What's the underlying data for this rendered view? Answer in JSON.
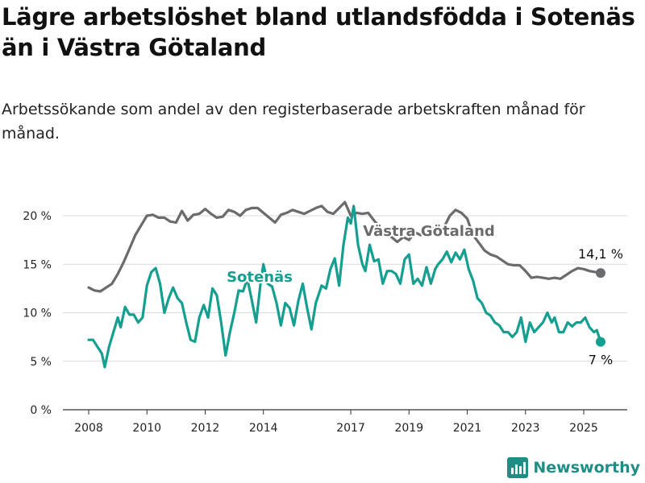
{
  "title": "Lägre arbetslöshet bland utlandsfödda i Sotenäs än i Västra Götaland",
  "subtitle": "Arbetssökande som andel av den registerbaserade arbetskraften månad för månad.",
  "brand": {
    "name": "Newsworthy",
    "icon": "bar-chart-logo-icon",
    "color": "#1f8f86"
  },
  "chart_data": {
    "type": "line",
    "title": "Lägre arbetslöshet bland utlandsfödda i Sotenäs än i Västra Götaland",
    "xlabel": "",
    "ylabel": "",
    "xlim": [
      2007.9,
      2025.95
    ],
    "ylim": [
      0,
      22
    ],
    "x_ticks": [
      {
        "value": 2008,
        "label": "2008"
      },
      {
        "value": 2010,
        "label": "2010"
      },
      {
        "value": 2012,
        "label": "2012"
      },
      {
        "value": 2014,
        "label": "2014"
      },
      {
        "value": 2017,
        "label": "2017"
      },
      {
        "value": 2019,
        "label": "2019"
      },
      {
        "value": 2021,
        "label": "2021"
      },
      {
        "value": 2023,
        "label": "2023"
      },
      {
        "value": 2025,
        "label": "2025"
      }
    ],
    "y_ticks": [
      {
        "value": 0,
        "label": "0 %"
      },
      {
        "value": 5,
        "label": "5 %"
      },
      {
        "value": 10,
        "label": "10 %"
      },
      {
        "value": 15,
        "label": "15 %"
      },
      {
        "value": 20,
        "label": "20 %"
      }
    ],
    "grid": true,
    "series": [
      {
        "name": "Västra Götaland",
        "color": "#6b6b6d",
        "end_label": "14,1 %",
        "points": [
          [
            2008.0,
            12.6
          ],
          [
            2008.2,
            12.3
          ],
          [
            2008.4,
            12.2
          ],
          [
            2008.6,
            12.6
          ],
          [
            2008.8,
            13.0
          ],
          [
            2009.0,
            14.0
          ],
          [
            2009.2,
            15.2
          ],
          [
            2009.4,
            16.6
          ],
          [
            2009.6,
            18.0
          ],
          [
            2009.8,
            19.0
          ],
          [
            2010.0,
            20.0
          ],
          [
            2010.2,
            20.1
          ],
          [
            2010.4,
            19.8
          ],
          [
            2010.6,
            19.8
          ],
          [
            2010.8,
            19.4
          ],
          [
            2011.0,
            19.3
          ],
          [
            2011.2,
            20.5
          ],
          [
            2011.4,
            19.5
          ],
          [
            2011.6,
            20.1
          ],
          [
            2011.8,
            20.2
          ],
          [
            2012.0,
            20.7
          ],
          [
            2012.2,
            20.2
          ],
          [
            2012.4,
            19.8
          ],
          [
            2012.6,
            19.9
          ],
          [
            2012.8,
            20.6
          ],
          [
            2013.0,
            20.4
          ],
          [
            2013.2,
            20.0
          ],
          [
            2013.4,
            20.6
          ],
          [
            2013.6,
            20.8
          ],
          [
            2013.8,
            20.8
          ],
          [
            2014.0,
            20.3
          ],
          [
            2014.2,
            19.8
          ],
          [
            2014.4,
            19.3
          ],
          [
            2014.6,
            20.1
          ],
          [
            2014.8,
            20.3
          ],
          [
            2015.0,
            20.6
          ],
          [
            2015.2,
            20.4
          ],
          [
            2015.4,
            20.2
          ],
          [
            2015.6,
            20.5
          ],
          [
            2015.8,
            20.8
          ],
          [
            2016.0,
            21.0
          ],
          [
            2016.2,
            20.4
          ],
          [
            2016.4,
            20.2
          ],
          [
            2016.6,
            20.8
          ],
          [
            2016.8,
            21.4
          ],
          [
            2017.0,
            20.0
          ],
          [
            2017.2,
            20.3
          ],
          [
            2017.4,
            20.2
          ],
          [
            2017.6,
            20.3
          ],
          [
            2017.8,
            19.5
          ],
          [
            2018.0,
            18.8
          ],
          [
            2018.2,
            18.2
          ],
          [
            2018.4,
            17.8
          ],
          [
            2018.6,
            17.3
          ],
          [
            2018.8,
            17.8
          ],
          [
            2019.0,
            17.5
          ],
          [
            2019.2,
            18.3
          ],
          [
            2019.4,
            18.0
          ],
          [
            2019.6,
            18.4
          ],
          [
            2019.8,
            18.7
          ],
          [
            2020.0,
            18.4
          ],
          [
            2020.2,
            18.8
          ],
          [
            2020.4,
            20.0
          ],
          [
            2020.6,
            20.6
          ],
          [
            2020.8,
            20.3
          ],
          [
            2021.0,
            19.7
          ],
          [
            2021.2,
            18.0
          ],
          [
            2021.4,
            17.2
          ],
          [
            2021.6,
            16.4
          ],
          [
            2021.8,
            16.0
          ],
          [
            2022.0,
            15.8
          ],
          [
            2022.2,
            15.4
          ],
          [
            2022.4,
            15.0
          ],
          [
            2022.6,
            14.9
          ],
          [
            2022.8,
            14.9
          ],
          [
            2023.0,
            14.3
          ],
          [
            2023.2,
            13.6
          ],
          [
            2023.4,
            13.7
          ],
          [
            2023.6,
            13.6
          ],
          [
            2023.8,
            13.5
          ],
          [
            2024.0,
            13.6
          ],
          [
            2024.2,
            13.5
          ],
          [
            2024.4,
            13.9
          ],
          [
            2024.6,
            14.3
          ],
          [
            2024.8,
            14.6
          ],
          [
            2025.0,
            14.5
          ],
          [
            2025.2,
            14.3
          ],
          [
            2025.4,
            14.2
          ],
          [
            2025.58,
            14.1
          ]
        ]
      },
      {
        "name": "Sotenäs",
        "color": "#159f91",
        "end_label": "7 %",
        "points": [
          [
            2008.0,
            7.2
          ],
          [
            2008.15,
            7.2
          ],
          [
            2008.3,
            6.5
          ],
          [
            2008.45,
            5.8
          ],
          [
            2008.55,
            4.4
          ],
          [
            2008.7,
            6.5
          ],
          [
            2008.85,
            8.0
          ],
          [
            2009.0,
            9.5
          ],
          [
            2009.1,
            8.5
          ],
          [
            2009.25,
            10.6
          ],
          [
            2009.4,
            9.8
          ],
          [
            2009.55,
            9.8
          ],
          [
            2009.7,
            9.0
          ],
          [
            2009.85,
            9.5
          ],
          [
            2010.0,
            12.8
          ],
          [
            2010.15,
            14.2
          ],
          [
            2010.3,
            14.6
          ],
          [
            2010.45,
            13.0
          ],
          [
            2010.6,
            10.0
          ],
          [
            2010.75,
            11.5
          ],
          [
            2010.9,
            12.6
          ],
          [
            2011.05,
            11.5
          ],
          [
            2011.2,
            11.0
          ],
          [
            2011.35,
            9.0
          ],
          [
            2011.5,
            7.2
          ],
          [
            2011.65,
            7.0
          ],
          [
            2011.8,
            9.5
          ],
          [
            2011.95,
            10.8
          ],
          [
            2012.1,
            9.5
          ],
          [
            2012.25,
            12.5
          ],
          [
            2012.4,
            11.8
          ],
          [
            2012.55,
            9.0
          ],
          [
            2012.7,
            5.6
          ],
          [
            2012.85,
            8.0
          ],
          [
            2013.0,
            10.0
          ],
          [
            2013.15,
            12.3
          ],
          [
            2013.3,
            12.2
          ],
          [
            2013.45,
            13.5
          ],
          [
            2013.6,
            11.3
          ],
          [
            2013.75,
            9.0
          ],
          [
            2013.9,
            13.0
          ],
          [
            2014.0,
            15.0
          ],
          [
            2014.15,
            13.0
          ],
          [
            2014.3,
            12.7
          ],
          [
            2014.45,
            11.0
          ],
          [
            2014.6,
            8.7
          ],
          [
            2014.75,
            11.0
          ],
          [
            2014.9,
            10.5
          ],
          [
            2015.05,
            8.7
          ],
          [
            2015.2,
            11.2
          ],
          [
            2015.35,
            13.0
          ],
          [
            2015.5,
            10.5
          ],
          [
            2015.65,
            8.3
          ],
          [
            2015.8,
            11.0
          ],
          [
            2016.0,
            12.8
          ],
          [
            2016.15,
            12.5
          ],
          [
            2016.3,
            14.5
          ],
          [
            2016.45,
            15.6
          ],
          [
            2016.6,
            12.8
          ],
          [
            2016.75,
            17.0
          ],
          [
            2016.9,
            19.8
          ],
          [
            2017.0,
            19.2
          ],
          [
            2017.1,
            21.0
          ],
          [
            2017.25,
            17.0
          ],
          [
            2017.4,
            15.0
          ],
          [
            2017.5,
            14.3
          ],
          [
            2017.65,
            17.0
          ],
          [
            2017.8,
            15.3
          ],
          [
            2017.95,
            15.5
          ],
          [
            2018.1,
            13.0
          ],
          [
            2018.25,
            14.3
          ],
          [
            2018.4,
            14.3
          ],
          [
            2018.55,
            14.0
          ],
          [
            2018.7,
            13.0
          ],
          [
            2018.85,
            15.5
          ],
          [
            2019.0,
            16.0
          ],
          [
            2019.15,
            13.0
          ],
          [
            2019.3,
            13.5
          ],
          [
            2019.45,
            12.8
          ],
          [
            2019.6,
            14.7
          ],
          [
            2019.75,
            13.0
          ],
          [
            2019.9,
            14.5
          ],
          [
            2020.0,
            15.0
          ],
          [
            2020.15,
            15.5
          ],
          [
            2020.3,
            16.3
          ],
          [
            2020.45,
            15.2
          ],
          [
            2020.6,
            16.2
          ],
          [
            2020.75,
            15.5
          ],
          [
            2020.9,
            16.5
          ],
          [
            2021.05,
            14.5
          ],
          [
            2021.2,
            13.3
          ],
          [
            2021.35,
            11.5
          ],
          [
            2021.5,
            11.0
          ],
          [
            2021.65,
            10.0
          ],
          [
            2021.8,
            9.7
          ],
          [
            2021.95,
            9.0
          ],
          [
            2022.1,
            8.7
          ],
          [
            2022.25,
            8.0
          ],
          [
            2022.4,
            8.0
          ],
          [
            2022.55,
            7.5
          ],
          [
            2022.7,
            8.0
          ],
          [
            2022.85,
            9.5
          ],
          [
            2023.0,
            7.0
          ],
          [
            2023.15,
            9.0
          ],
          [
            2023.3,
            8.0
          ],
          [
            2023.45,
            8.5
          ],
          [
            2023.6,
            9.0
          ],
          [
            2023.75,
            10.0
          ],
          [
            2023.9,
            9.0
          ],
          [
            2024.0,
            9.5
          ],
          [
            2024.15,
            8.0
          ],
          [
            2024.3,
            8.0
          ],
          [
            2024.45,
            9.0
          ],
          [
            2024.6,
            8.6
          ],
          [
            2024.75,
            9.0
          ],
          [
            2024.9,
            9.0
          ],
          [
            2025.05,
            9.5
          ],
          [
            2025.2,
            8.5
          ],
          [
            2025.35,
            8.0
          ],
          [
            2025.45,
            8.2
          ],
          [
            2025.58,
            7.0
          ]
        ]
      }
    ]
  }
}
